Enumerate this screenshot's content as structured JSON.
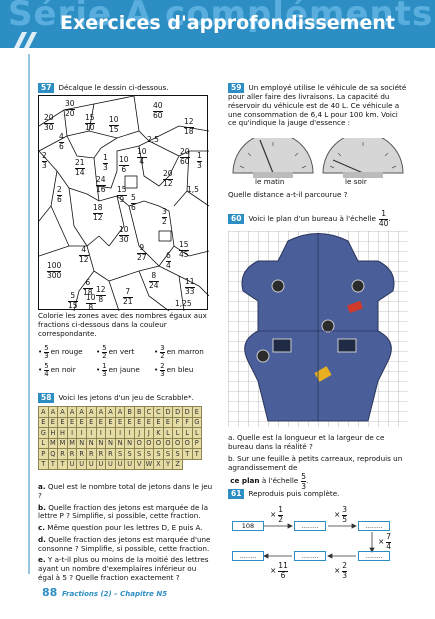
{
  "banner": {
    "background_text": "Série A compléments",
    "title": "Exercices d'approfondissement"
  },
  "ex57": {
    "number": "57",
    "instruction": "Décalque le dessin ci-dessous.",
    "fractions": [
      {
        "n": "30",
        "d": "20"
      },
      {
        "n": "40",
        "d": "60"
      },
      {
        "n": "20",
        "d": "30"
      },
      {
        "n": "15",
        "d": "10"
      },
      {
        "n": "10",
        "d": "15"
      },
      {
        "n": "12",
        "d": "18"
      },
      {
        "n": "4",
        "d": "6"
      },
      {
        "n": "2",
        "d": "3"
      },
      {
        "n": "2",
        "d": "3"
      },
      {
        "n": "10",
        "d": "4"
      },
      {
        "n": "20",
        "d": "60"
      },
      {
        "n": "1",
        "d": "3"
      },
      {
        "n": "21",
        "d": "14"
      },
      {
        "n": "1",
        "d": "3"
      },
      {
        "n": "10",
        "d": "6"
      },
      {
        "n": "20",
        "d": "12"
      },
      {
        "n": "24",
        "d": "16"
      },
      {
        "n": "2",
        "d": "6"
      },
      {
        "n": "15",
        "d": "9"
      },
      {
        "n": "5",
        "d": "6"
      },
      {
        "n": "18",
        "d": "12"
      },
      {
        "n": "3",
        "d": "2"
      },
      {
        "n": "10",
        "d": "30"
      },
      {
        "n": "15",
        "d": "45"
      },
      {
        "n": "4",
        "d": "12"
      },
      {
        "n": "9",
        "d": "27"
      },
      {
        "n": "6",
        "d": "4"
      },
      {
        "n": "100",
        "d": "300"
      },
      {
        "n": "8",
        "d": "24"
      },
      {
        "n": "11",
        "d": "33"
      },
      {
        "n": "6",
        "d": "18"
      },
      {
        "n": "12",
        "d": "8"
      },
      {
        "n": "7",
        "d": "21"
      },
      {
        "n": "5",
        "d": "15"
      },
      {
        "n": "10",
        "d": "8"
      },
      {
        "n": "1,25",
        "d": ""
      },
      {
        "n": "2,5",
        "d": ""
      },
      {
        "n": "1,5",
        "d": ""
      }
    ],
    "color_instruction": "Colorie les zones avec des nombres égaux aux fractions ci-dessous dans la couleur correspondante.",
    "legend": [
      {
        "n": "5",
        "d": "3",
        "color_name": "en rouge"
      },
      {
        "n": "5",
        "d": "2",
        "color_name": "en vert"
      },
      {
        "n": "3",
        "d": "2",
        "color_name": "en marron"
      },
      {
        "n": "5",
        "d": "4",
        "color_name": "en noir"
      },
      {
        "n": "1",
        "d": "3",
        "color_name": "en jaune"
      },
      {
        "n": "2",
        "d": "3",
        "color_name": "en bleu"
      }
    ]
  },
  "ex58": {
    "number": "58",
    "instruction": "Voici les jetons d'un jeu de Scrabble*.",
    "rows": [
      "AAAAAAAAABBCCDDDE",
      "EEEEEEEEEEEEEEFFG",
      "GHHIIIIIIIJJKLLLL",
      "LMMMNNNNNNOOOOOOP",
      "PQRRRRRRSSSSSSSTT",
      "TTTUUUUUUUVWXYZ"
    ],
    "questions": [
      {
        "label": "a.",
        "text": "Quel est le nombre total de jetons dans le jeu ?"
      },
      {
        "label": "b.",
        "text": "Quelle fraction des jetons est marquée de la lettre P ? Simplifie, si possible, cette fraction."
      },
      {
        "label": "c.",
        "text": "Même question pour les lettres D, E puis A."
      },
      {
        "label": "d.",
        "text": "Quelle fraction des jetons est marquée d'une consonne ? Simplifie, si possible, cette fraction."
      },
      {
        "label": "e.",
        "text": "Y a-t-il plus ou moins de la moitié des lettres ayant un nombre d'exemplaires inférieur ou égal à 5 ? Quelle fraction exactement ?"
      }
    ]
  },
  "ex59": {
    "number": "59",
    "text": "Un employé utilise le véhicule de sa société pour aller faire des livraisons. La capacité du réservoir du véhicule est de 40 L. Ce véhicule a une consommation de 6,4 L pour 100 km. Voici ce qu'indique la jauge d'essence :",
    "gauge_left": "le matin",
    "gauge_right": "le soir",
    "question": "Quelle distance a-t-il parcourue ?"
  },
  "ex60": {
    "number": "60",
    "text_before": "Voici le plan d'un bureau à l'échelle",
    "scale_n": "1",
    "scale_d": "40",
    "q_a": "a. Quelle est la longueur et la largeur de ce bureau dans la réalité ?",
    "q_b_before": "b. Sur une feuille à petits carreaux, reproduis un agrandissement de",
    "q_b_bold": "ce plan",
    "q_b_after": "à l'échelle",
    "q_b_scale_n": "5",
    "q_b_scale_d": "3"
  },
  "ex61": {
    "number": "61",
    "instruction": "Reproduis puis complète.",
    "start_value": "108",
    "blank": "........",
    "ops": [
      {
        "sign": "×",
        "n": "1",
        "d": "2"
      },
      {
        "sign": "×",
        "n": "3",
        "d": "5"
      },
      {
        "sign": "×",
        "n": "7",
        "d": "4"
      },
      {
        "sign": "×",
        "n": "2",
        "d": "3"
      },
      {
        "sign": "×",
        "n": "11",
        "d": "6"
      }
    ]
  },
  "footer": {
    "page_number": "88",
    "chapter": "Fractions (2) – Chapitre N5"
  },
  "colors": {
    "accent": "#2d8ec4",
    "tile": "#e6dca6",
    "plan_bg": "#4a5e9a"
  }
}
